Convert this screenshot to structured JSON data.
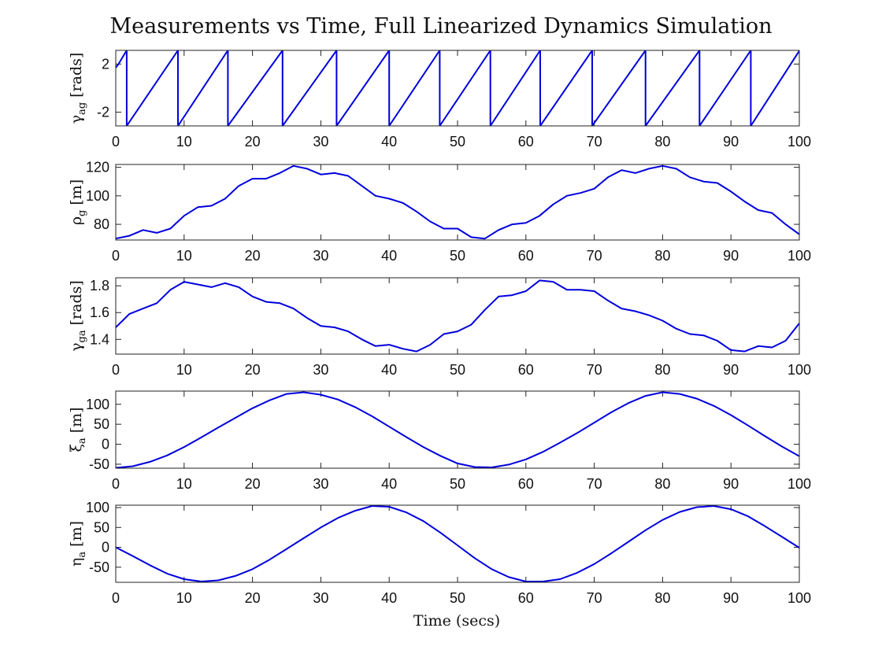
{
  "figure": {
    "title": "Measurements vs Time, Full Linearized Dynamics Simulation",
    "xlabel": "Time (secs)"
  },
  "chart_data": [
    {
      "type": "line",
      "id": "gamma_ag",
      "ylabel_main": "γ",
      "ylabel_sub": "ag",
      "ylabel_unit": "[rads]",
      "xlim": [
        0,
        100
      ],
      "ylim": [
        -3.1416,
        3.1416
      ],
      "xticks": [
        0,
        10,
        20,
        30,
        40,
        50,
        60,
        70,
        80,
        90,
        100
      ],
      "yticks": [
        -2,
        2
      ],
      "series": [
        {
          "color": "#0000dd",
          "x": [
            0,
            0.4,
            1.6,
            1.6,
            9.1,
            9.1,
            16.4,
            16.4,
            24.4,
            24.4,
            32.3,
            32.3,
            40.0,
            40.0,
            47.4,
            47.4,
            54.8,
            54.8,
            62.1,
            62.1,
            69.7,
            69.7,
            77.5,
            77.5,
            85.4,
            85.4,
            92.9,
            92.9,
            100
          ],
          "y": [
            1.7,
            2.0,
            3.14,
            -3.14,
            3.14,
            -3.14,
            3.14,
            -3.14,
            3.14,
            -3.14,
            3.14,
            -3.14,
            3.14,
            -3.14,
            3.14,
            -3.14,
            3.14,
            -3.14,
            3.14,
            -3.14,
            3.14,
            -3.14,
            3.14,
            -3.14,
            3.14,
            -3.14,
            3.14,
            -3.14,
            3.1
          ]
        }
      ]
    },
    {
      "type": "line",
      "id": "rho_g",
      "ylabel_main": "ρ",
      "ylabel_sub": "g",
      "ylabel_unit": "[m]",
      "xlim": [
        0,
        100
      ],
      "ylim": [
        69,
        122
      ],
      "xticks": [
        0,
        10,
        20,
        30,
        40,
        50,
        60,
        70,
        80,
        90,
        100
      ],
      "yticks": [
        80,
        100,
        120
      ],
      "series": [
        {
          "color": "#0000dd",
          "x": [
            0,
            2,
            4,
            6,
            8,
            10,
            12,
            14,
            16,
            18,
            20,
            22,
            24,
            26,
            28,
            30,
            32,
            34,
            36,
            38,
            40,
            42,
            44,
            46,
            48,
            50,
            52,
            54,
            56,
            58,
            60,
            62,
            64,
            66,
            68,
            70,
            72,
            74,
            76,
            78,
            80,
            82,
            84,
            86,
            88,
            90,
            92,
            94,
            96,
            98,
            100
          ],
          "y": [
            70,
            72,
            76,
            74,
            77,
            86,
            92,
            93,
            98,
            107,
            112,
            112,
            116,
            121,
            119,
            115,
            116,
            114,
            107,
            100,
            98,
            95,
            89,
            82,
            77,
            77,
            71,
            70,
            76,
            80,
            81,
            86,
            94,
            100,
            102,
            105,
            113,
            118,
            116,
            119,
            121,
            119,
            113,
            110,
            109,
            103,
            96,
            90,
            88,
            80,
            73
          ]
        }
      ]
    },
    {
      "type": "line",
      "id": "gamma_ga",
      "ylabel_main": "γ",
      "ylabel_sub": "ga",
      "ylabel_unit": "[rads]",
      "xlim": [
        0,
        100
      ],
      "ylim": [
        1.29,
        1.86
      ],
      "xticks": [
        0,
        10,
        20,
        30,
        40,
        50,
        60,
        70,
        80,
        90,
        100
      ],
      "yticks": [
        1.4,
        1.6,
        1.8
      ],
      "series": [
        {
          "color": "#0000dd",
          "x": [
            0,
            2,
            4,
            6,
            8,
            10,
            12,
            14,
            16,
            18,
            20,
            22,
            24,
            26,
            28,
            30,
            32,
            34,
            36,
            38,
            40,
            42,
            44,
            46,
            48,
            50,
            52,
            54,
            56,
            58,
            60,
            62,
            64,
            66,
            68,
            70,
            72,
            74,
            76,
            78,
            80,
            82,
            84,
            86,
            88,
            90,
            92,
            94,
            96,
            98,
            100
          ],
          "y": [
            1.49,
            1.59,
            1.63,
            1.67,
            1.77,
            1.83,
            1.81,
            1.79,
            1.82,
            1.79,
            1.72,
            1.68,
            1.67,
            1.63,
            1.56,
            1.5,
            1.49,
            1.46,
            1.4,
            1.35,
            1.36,
            1.33,
            1.31,
            1.36,
            1.44,
            1.46,
            1.51,
            1.62,
            1.72,
            1.73,
            1.76,
            1.84,
            1.83,
            1.77,
            1.77,
            1.76,
            1.69,
            1.63,
            1.61,
            1.58,
            1.54,
            1.48,
            1.44,
            1.43,
            1.39,
            1.32,
            1.31,
            1.35,
            1.34,
            1.39,
            1.52
          ]
        }
      ]
    },
    {
      "type": "line",
      "id": "xi_a",
      "ylabel_main": "ξ",
      "ylabel_sub": "a",
      "ylabel_unit": "[m]",
      "xlim": [
        0,
        100
      ],
      "ylim": [
        -60,
        133
      ],
      "xticks": [
        0,
        10,
        20,
        30,
        40,
        50,
        60,
        70,
        80,
        90,
        100
      ],
      "yticks": [
        -50,
        0,
        50,
        100
      ],
      "series": [
        {
          "color": "#0000dd",
          "x": [
            0,
            2.5,
            5,
            7.5,
            10,
            12.5,
            15,
            17.5,
            20,
            22.5,
            25,
            27.5,
            30,
            32.5,
            35,
            37.5,
            40,
            42.5,
            45,
            47.5,
            50,
            52.5,
            55,
            57.5,
            60,
            62.5,
            65,
            67.5,
            70,
            72.5,
            75,
            77.5,
            80,
            82.5,
            85,
            87.5,
            90,
            92.5,
            95,
            97.5,
            100
          ],
          "y": [
            -59,
            -55,
            -44,
            -28,
            -7,
            17,
            42,
            66,
            90,
            110,
            126,
            130,
            124,
            112,
            93,
            70,
            44,
            18,
            -7,
            -29,
            -48,
            -57,
            -58,
            -51,
            -38,
            -19,
            4,
            28,
            54,
            80,
            103,
            121,
            130,
            126,
            114,
            96,
            73,
            47,
            20,
            -6,
            -30
          ]
        }
      ]
    },
    {
      "type": "line",
      "id": "eta_a",
      "ylabel_main": "η",
      "ylabel_sub": "a",
      "ylabel_unit": "[m]",
      "xlim": [
        0,
        100
      ],
      "ylim": [
        -88,
        106
      ],
      "xticks": [
        0,
        10,
        20,
        30,
        40,
        50,
        60,
        70,
        80,
        90,
        100
      ],
      "yticks": [
        -50,
        0,
        50,
        100
      ],
      "series": [
        {
          "color": "#0000dd",
          "x": [
            0,
            2.5,
            5,
            7.5,
            10,
            12.5,
            15,
            17.5,
            20,
            22.5,
            25,
            27.5,
            30,
            32.5,
            35,
            37.5,
            40,
            42.5,
            45,
            47.5,
            50,
            52.5,
            55,
            57.5,
            60,
            62.5,
            65,
            67.5,
            70,
            72.5,
            75,
            77.5,
            80,
            82.5,
            85,
            87.5,
            90,
            92.5,
            95,
            97.5,
            100
          ],
          "y": [
            0,
            -22,
            -45,
            -66,
            -80,
            -86,
            -83,
            -72,
            -55,
            -31,
            -4,
            23,
            50,
            74,
            92,
            104,
            102,
            88,
            66,
            37,
            5,
            -27,
            -55,
            -75,
            -86,
            -86,
            -80,
            -64,
            -42,
            -15,
            14,
            43,
            69,
            89,
            101,
            104,
            96,
            78,
            53,
            26,
            -1
          ]
        }
      ]
    }
  ]
}
